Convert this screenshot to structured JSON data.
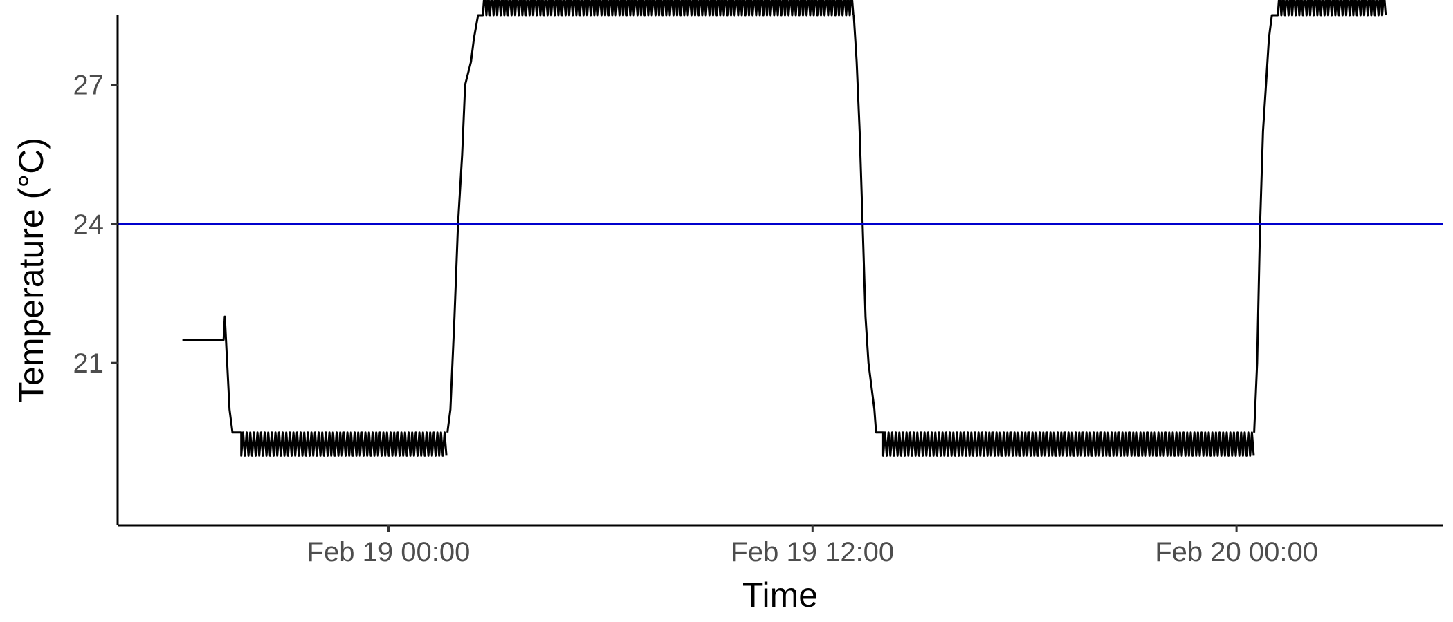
{
  "chart_data": {
    "type": "line",
    "title": "",
    "xlabel": "Time",
    "ylabel": "Temperature (°C)",
    "x_ticks": [
      "Feb 19 00:00",
      "Feb 19 12:00",
      "Feb 20 00:00"
    ],
    "x_tick_values": [
      "2023-02-19T00:00",
      "2023-02-19T12:00",
      "2023-02-20T00:00"
    ],
    "xlim": [
      "2023-02-18T16:20",
      "2023-02-20T05:50"
    ],
    "y_ticks": [
      21,
      24,
      27
    ],
    "ylim": [
      17.5,
      28.5
    ],
    "grid": false,
    "legend": "none",
    "reference_line": {
      "y": 24,
      "color": "#0000cc"
    },
    "line_color": "#000000",
    "series": [
      {
        "points": [
          [
            "2023-02-18T18:10",
            21.5
          ],
          [
            "2023-02-18T19:20",
            21.5
          ],
          [
            "2023-02-18T19:22",
            22.0
          ],
          [
            "2023-02-18T19:30",
            20.0
          ],
          [
            "2023-02-18T19:35",
            19.5
          ],
          [
            "2023-02-18T19:50",
            19.5
          ]
        ],
        "oscillation": {
          "start": "2023-02-18T19:50",
          "end": "2023-02-19T01:40",
          "low": 19.0,
          "high": 19.5
        }
      },
      {
        "points": [
          [
            "2023-02-19T01:40",
            19.5
          ],
          [
            "2023-02-19T01:45",
            20.0
          ],
          [
            "2023-02-19T01:52",
            22.0
          ],
          [
            "2023-02-19T01:58",
            24.0
          ],
          [
            "2023-02-19T02:05",
            25.5
          ],
          [
            "2023-02-19T02:10",
            27.0
          ],
          [
            "2023-02-19T02:20",
            27.5
          ],
          [
            "2023-02-19T02:25",
            28.0
          ],
          [
            "2023-02-19T02:32",
            28.5
          ],
          [
            "2023-02-19T02:40",
            28.5
          ]
        ],
        "oscillation": {
          "start": "2023-02-19T02:40",
          "end": "2023-02-19T13:10",
          "low": 28.5,
          "high": 29.0
        }
      },
      {
        "points": [
          [
            "2023-02-19T13:10",
            28.5
          ],
          [
            "2023-02-19T13:15",
            27.5
          ],
          [
            "2023-02-19T13:20",
            26.0
          ],
          [
            "2023-02-19T13:25",
            24.0
          ],
          [
            "2023-02-19T13:30",
            22.0
          ],
          [
            "2023-02-19T13:35",
            21.0
          ],
          [
            "2023-02-19T13:40",
            20.5
          ],
          [
            "2023-02-19T13:45",
            20.0
          ],
          [
            "2023-02-19T13:48",
            19.5
          ],
          [
            "2023-02-19T14:00",
            19.5
          ]
        ],
        "oscillation": {
          "start": "2023-02-19T14:00",
          "end": "2023-02-20T00:30",
          "low": 19.0,
          "high": 19.5
        }
      },
      {
        "points": [
          [
            "2023-02-20T00:30",
            19.5
          ],
          [
            "2023-02-20T00:35",
            21.0
          ],
          [
            "2023-02-20T00:40",
            24.0
          ],
          [
            "2023-02-20T00:45",
            26.0
          ],
          [
            "2023-02-20T00:50",
            27.0
          ],
          [
            "2023-02-20T00:55",
            28.0
          ],
          [
            "2023-02-20T01:00",
            28.5
          ],
          [
            "2023-02-20T01:10",
            28.5
          ]
        ],
        "oscillation": {
          "start": "2023-02-20T01:10",
          "end": "2023-02-20T04:15",
          "low": 28.5,
          "high": 29.0
        }
      }
    ]
  }
}
